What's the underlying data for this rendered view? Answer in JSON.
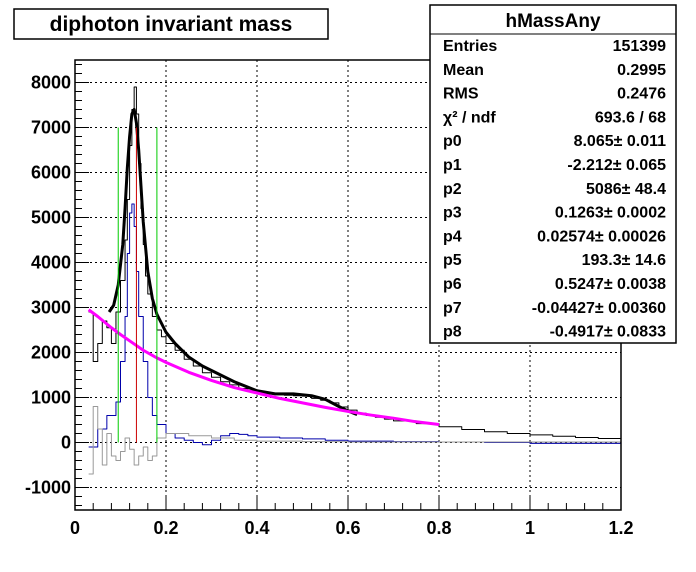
{
  "chart_data": {
    "type": "line",
    "title": "diphoton invariant mass",
    "xlabel": "",
    "ylabel": "",
    "xlim": [
      0,
      1.2
    ],
    "ylim": [
      -1500,
      8500
    ],
    "x_ticks": [
      "0",
      "0.2",
      "0.4",
      "0.6",
      "0.8",
      "1",
      "1.2"
    ],
    "y_ticks": [
      "-1000",
      "0",
      "1000",
      "2000",
      "3000",
      "4000",
      "5000",
      "6000",
      "7000",
      "8000"
    ],
    "grid": true,
    "colors": {
      "histogram": "#000000",
      "fit": "#000000",
      "background_fit": "#ff00ff",
      "subtracted": "#0000aa",
      "secondary": "#999999",
      "window_edges": "#00cc00",
      "peak_marker": "#cc0000"
    },
    "series": [
      {
        "type": "step",
        "color": "#000000",
        "x": [
          0.03,
          0.04,
          0.05,
          0.06,
          0.07,
          0.08,
          0.09,
          0.1,
          0.11,
          0.115,
          0.12,
          0.125,
          0.13,
          0.135,
          0.14,
          0.145,
          0.15,
          0.155,
          0.16,
          0.17,
          0.18,
          0.19,
          0.2,
          0.22,
          0.24,
          0.26,
          0.28,
          0.3,
          0.32,
          0.34,
          0.36,
          0.38,
          0.4,
          0.42,
          0.44,
          0.46,
          0.48,
          0.5,
          0.52,
          0.54,
          0.56,
          0.58,
          0.6,
          0.62,
          0.64,
          0.66,
          0.68,
          0.7,
          0.75,
          0.8,
          0.85,
          0.9,
          0.95,
          1.0,
          1.05,
          1.1,
          1.15,
          1.2
        ],
        "y": [
          2900,
          1800,
          2200,
          2700,
          2550,
          2200,
          2900,
          3600,
          4500,
          5400,
          6600,
          7400,
          7900,
          7300,
          6200,
          5200,
          4400,
          3700,
          3300,
          2800,
          2500,
          2350,
          2200,
          2050,
          1850,
          1700,
          1550,
          1450,
          1350,
          1280,
          1200,
          1150,
          1100,
          1080,
          1060,
          1050,
          1040,
          1030,
          980,
          940,
          880,
          790,
          720,
          650,
          600,
          560,
          520,
          480,
          420,
          350,
          290,
          240,
          200,
          170,
          140,
          110,
          90,
          80
        ]
      },
      {
        "type": "step",
        "color": "#0000aa",
        "x": [
          0.03,
          0.05,
          0.07,
          0.09,
          0.1,
          0.11,
          0.115,
          0.12,
          0.125,
          0.13,
          0.135,
          0.14,
          0.15,
          0.16,
          0.17,
          0.18,
          0.2,
          0.22,
          0.24,
          0.26,
          0.28,
          0.3,
          0.32,
          0.34,
          0.36,
          0.38,
          0.4,
          0.45,
          0.5,
          0.55,
          0.6,
          0.7,
          0.8,
          0.9,
          1.0,
          1.1,
          1.2
        ],
        "y": [
          -100,
          300,
          600,
          900,
          1800,
          2800,
          4200,
          5100,
          5300,
          4800,
          3800,
          2800,
          1800,
          1000,
          600,
          400,
          200,
          100,
          50,
          0,
          -50,
          50,
          150,
          200,
          180,
          150,
          120,
          100,
          80,
          50,
          30,
          20,
          10,
          0,
          -20,
          -20,
          -20
        ]
      },
      {
        "type": "step",
        "color": "#999999",
        "x": [
          0.03,
          0.04,
          0.05,
          0.06,
          0.07,
          0.08,
          0.09,
          0.1,
          0.11,
          0.12,
          0.13,
          0.14,
          0.15,
          0.16,
          0.17,
          0.18,
          0.2,
          0.25,
          0.3,
          0.35,
          0.4,
          0.5,
          0.6
        ],
        "y": [
          -700,
          800,
          300,
          -500,
          200,
          -300,
          -400,
          -200,
          100,
          -150,
          -500,
          -300,
          -100,
          -400,
          -300,
          100,
          200,
          150,
          100,
          50,
          30,
          20,
          10
        ]
      },
      {
        "type": "line",
        "color": "#000000",
        "x": [
          0.075,
          0.085,
          0.095,
          0.105,
          0.11,
          0.115,
          0.12,
          0.125,
          0.13,
          0.135,
          0.14,
          0.145,
          0.15,
          0.16,
          0.17,
          0.18,
          0.2,
          0.22,
          0.25,
          0.28,
          0.3,
          0.35,
          0.4,
          0.44,
          0.48,
          0.52,
          0.55,
          0.58,
          0.6,
          0.62
        ],
        "y": [
          2900,
          3050,
          3500,
          4400,
          5200,
          6100,
          6800,
          7300,
          7400,
          7100,
          6500,
          5700,
          4900,
          3800,
          3200,
          2850,
          2450,
          2200,
          1900,
          1700,
          1600,
          1350,
          1150,
          1080,
          1080,
          1040,
          960,
          800,
          700,
          620
        ]
      },
      {
        "type": "line",
        "color": "#ff00ff",
        "x": [
          0.03,
          0.05,
          0.08,
          0.1,
          0.12,
          0.15,
          0.18,
          0.2,
          0.25,
          0.3,
          0.35,
          0.4,
          0.45,
          0.5,
          0.55,
          0.6,
          0.65,
          0.7,
          0.75,
          0.8
        ],
        "y": [
          2950,
          2800,
          2550,
          2400,
          2260,
          2050,
          1880,
          1780,
          1560,
          1380,
          1220,
          1100,
          980,
          880,
          780,
          690,
          610,
          540,
          460,
          400
        ]
      }
    ],
    "vertical_lines": [
      {
        "x": 0.095,
        "y_top": 7000,
        "color": "#00cc00"
      },
      {
        "x": 0.18,
        "y_top": 7000,
        "color": "#00cc00"
      },
      {
        "x": 0.135,
        "y_top": 7000,
        "color": "#cc0000"
      }
    ],
    "stats_box": {
      "title": "hMassAny",
      "rows": [
        {
          "label": "Entries",
          "value": "151399"
        },
        {
          "label": "Mean",
          "value": "0.2995"
        },
        {
          "label": "RMS",
          "value": "0.2476"
        },
        {
          "label": "χ² / ndf",
          "value": "693.6 / 68"
        },
        {
          "label": "p0",
          "value": "8.065± 0.011"
        },
        {
          "label": "p1",
          "value": "-2.212± 0.065"
        },
        {
          "label": "p2",
          "value": "5086± 48.4"
        },
        {
          "label": "p3",
          "value": "0.1263± 0.0002"
        },
        {
          "label": "p4",
          "value": "0.02574± 0.00026"
        },
        {
          "label": "p5",
          "value": "193.3± 14.6"
        },
        {
          "label": "p6",
          "value": "0.5247± 0.0038"
        },
        {
          "label": "p7",
          "value": "-0.04427± 0.00360"
        },
        {
          "label": "p8",
          "value": "-0.4917± 0.0833"
        }
      ]
    }
  }
}
